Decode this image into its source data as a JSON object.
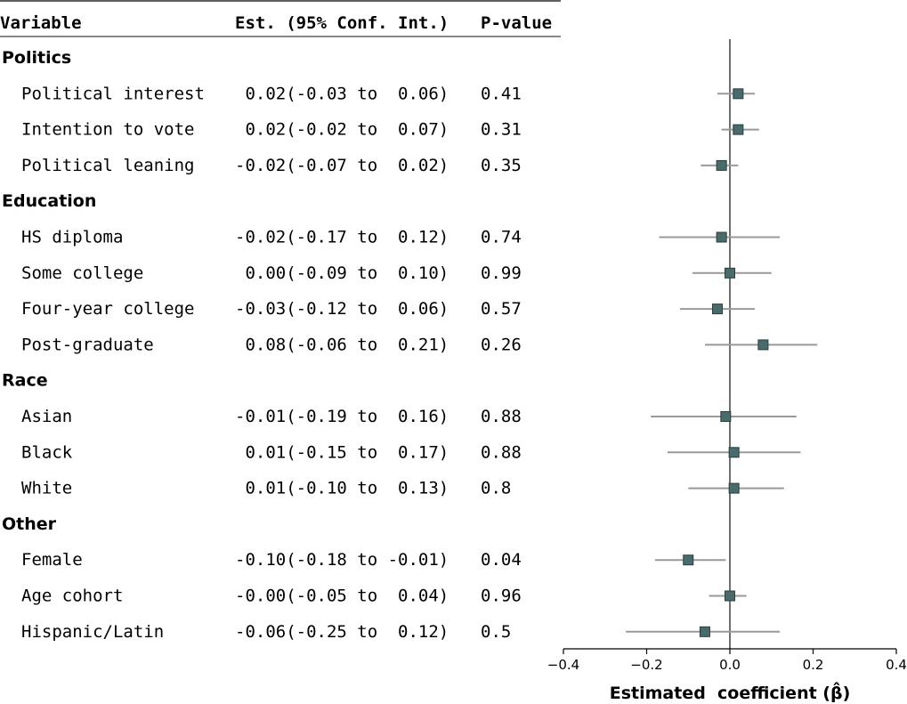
{
  "chart_data": {
    "type": "forest",
    "columns": {
      "variable": "Variable",
      "estimate": "Est. (95% Conf. Int.)",
      "pvalue": "P-value"
    },
    "xlabel": "Estimated  coefficient (β̂)",
    "xlim": [
      -0.4,
      0.4
    ],
    "xticks": [
      "−0.4",
      "−0.2",
      "0.0",
      "0.2",
      "0.4"
    ],
    "xtick_values": [
      -0.4,
      -0.2,
      0.0,
      0.2,
      0.4
    ],
    "reference_line": 0,
    "marker_color": "#4a6b6b",
    "ci_color": "#999999",
    "groups": [
      {
        "name": "Politics",
        "rows": [
          {
            "label": "Political interest",
            "est_text": " 0.02(-0.03 to  0.06)",
            "p": "0.41",
            "est": 0.02,
            "lo": -0.03,
            "hi": 0.06
          },
          {
            "label": "Intention to vote",
            "est_text": " 0.02(-0.02 to  0.07)",
            "p": "0.31",
            "est": 0.02,
            "lo": -0.02,
            "hi": 0.07
          },
          {
            "label": "Political leaning",
            "est_text": "-0.02(-0.07 to  0.02)",
            "p": "0.35",
            "est": -0.02,
            "lo": -0.07,
            "hi": 0.02
          }
        ]
      },
      {
        "name": "Education",
        "rows": [
          {
            "label": "HS diploma",
            "est_text": "-0.02(-0.17 to  0.12)",
            "p": "0.74",
            "est": -0.02,
            "lo": -0.17,
            "hi": 0.12
          },
          {
            "label": "Some college",
            "est_text": " 0.00(-0.09 to  0.10)",
            "p": "0.99",
            "est": 0.0,
            "lo": -0.09,
            "hi": 0.1
          },
          {
            "label": "Four-year college",
            "est_text": "-0.03(-0.12 to  0.06)",
            "p": "0.57",
            "est": -0.03,
            "lo": -0.12,
            "hi": 0.06
          },
          {
            "label": "Post-graduate",
            "est_text": " 0.08(-0.06 to  0.21)",
            "p": "0.26",
            "est": 0.08,
            "lo": -0.06,
            "hi": 0.21
          }
        ]
      },
      {
        "name": "Race",
        "rows": [
          {
            "label": "Asian",
            "est_text": "-0.01(-0.19 to  0.16)",
            "p": "0.88",
            "est": -0.01,
            "lo": -0.19,
            "hi": 0.16
          },
          {
            "label": "Black",
            "est_text": " 0.01(-0.15 to  0.17)",
            "p": "0.88",
            "est": 0.01,
            "lo": -0.15,
            "hi": 0.17
          },
          {
            "label": "White",
            "est_text": " 0.01(-0.10 to  0.13)",
            "p": "0.8",
            "est": 0.01,
            "lo": -0.1,
            "hi": 0.13
          }
        ]
      },
      {
        "name": "Other",
        "rows": [
          {
            "label": "Female",
            "est_text": "-0.10(-0.18 to -0.01)",
            "p": "0.04",
            "est": -0.1,
            "lo": -0.18,
            "hi": -0.01
          },
          {
            "label": "Age cohort",
            "est_text": "-0.00(-0.05 to  0.04)",
            "p": "0.96",
            "est": 0.0,
            "lo": -0.05,
            "hi": 0.04
          },
          {
            "label": "Hispanic/Latin",
            "est_text": "-0.06(-0.25 to  0.12)",
            "p": "0.5",
            "est": -0.06,
            "lo": -0.25,
            "hi": 0.12
          }
        ]
      }
    ]
  }
}
